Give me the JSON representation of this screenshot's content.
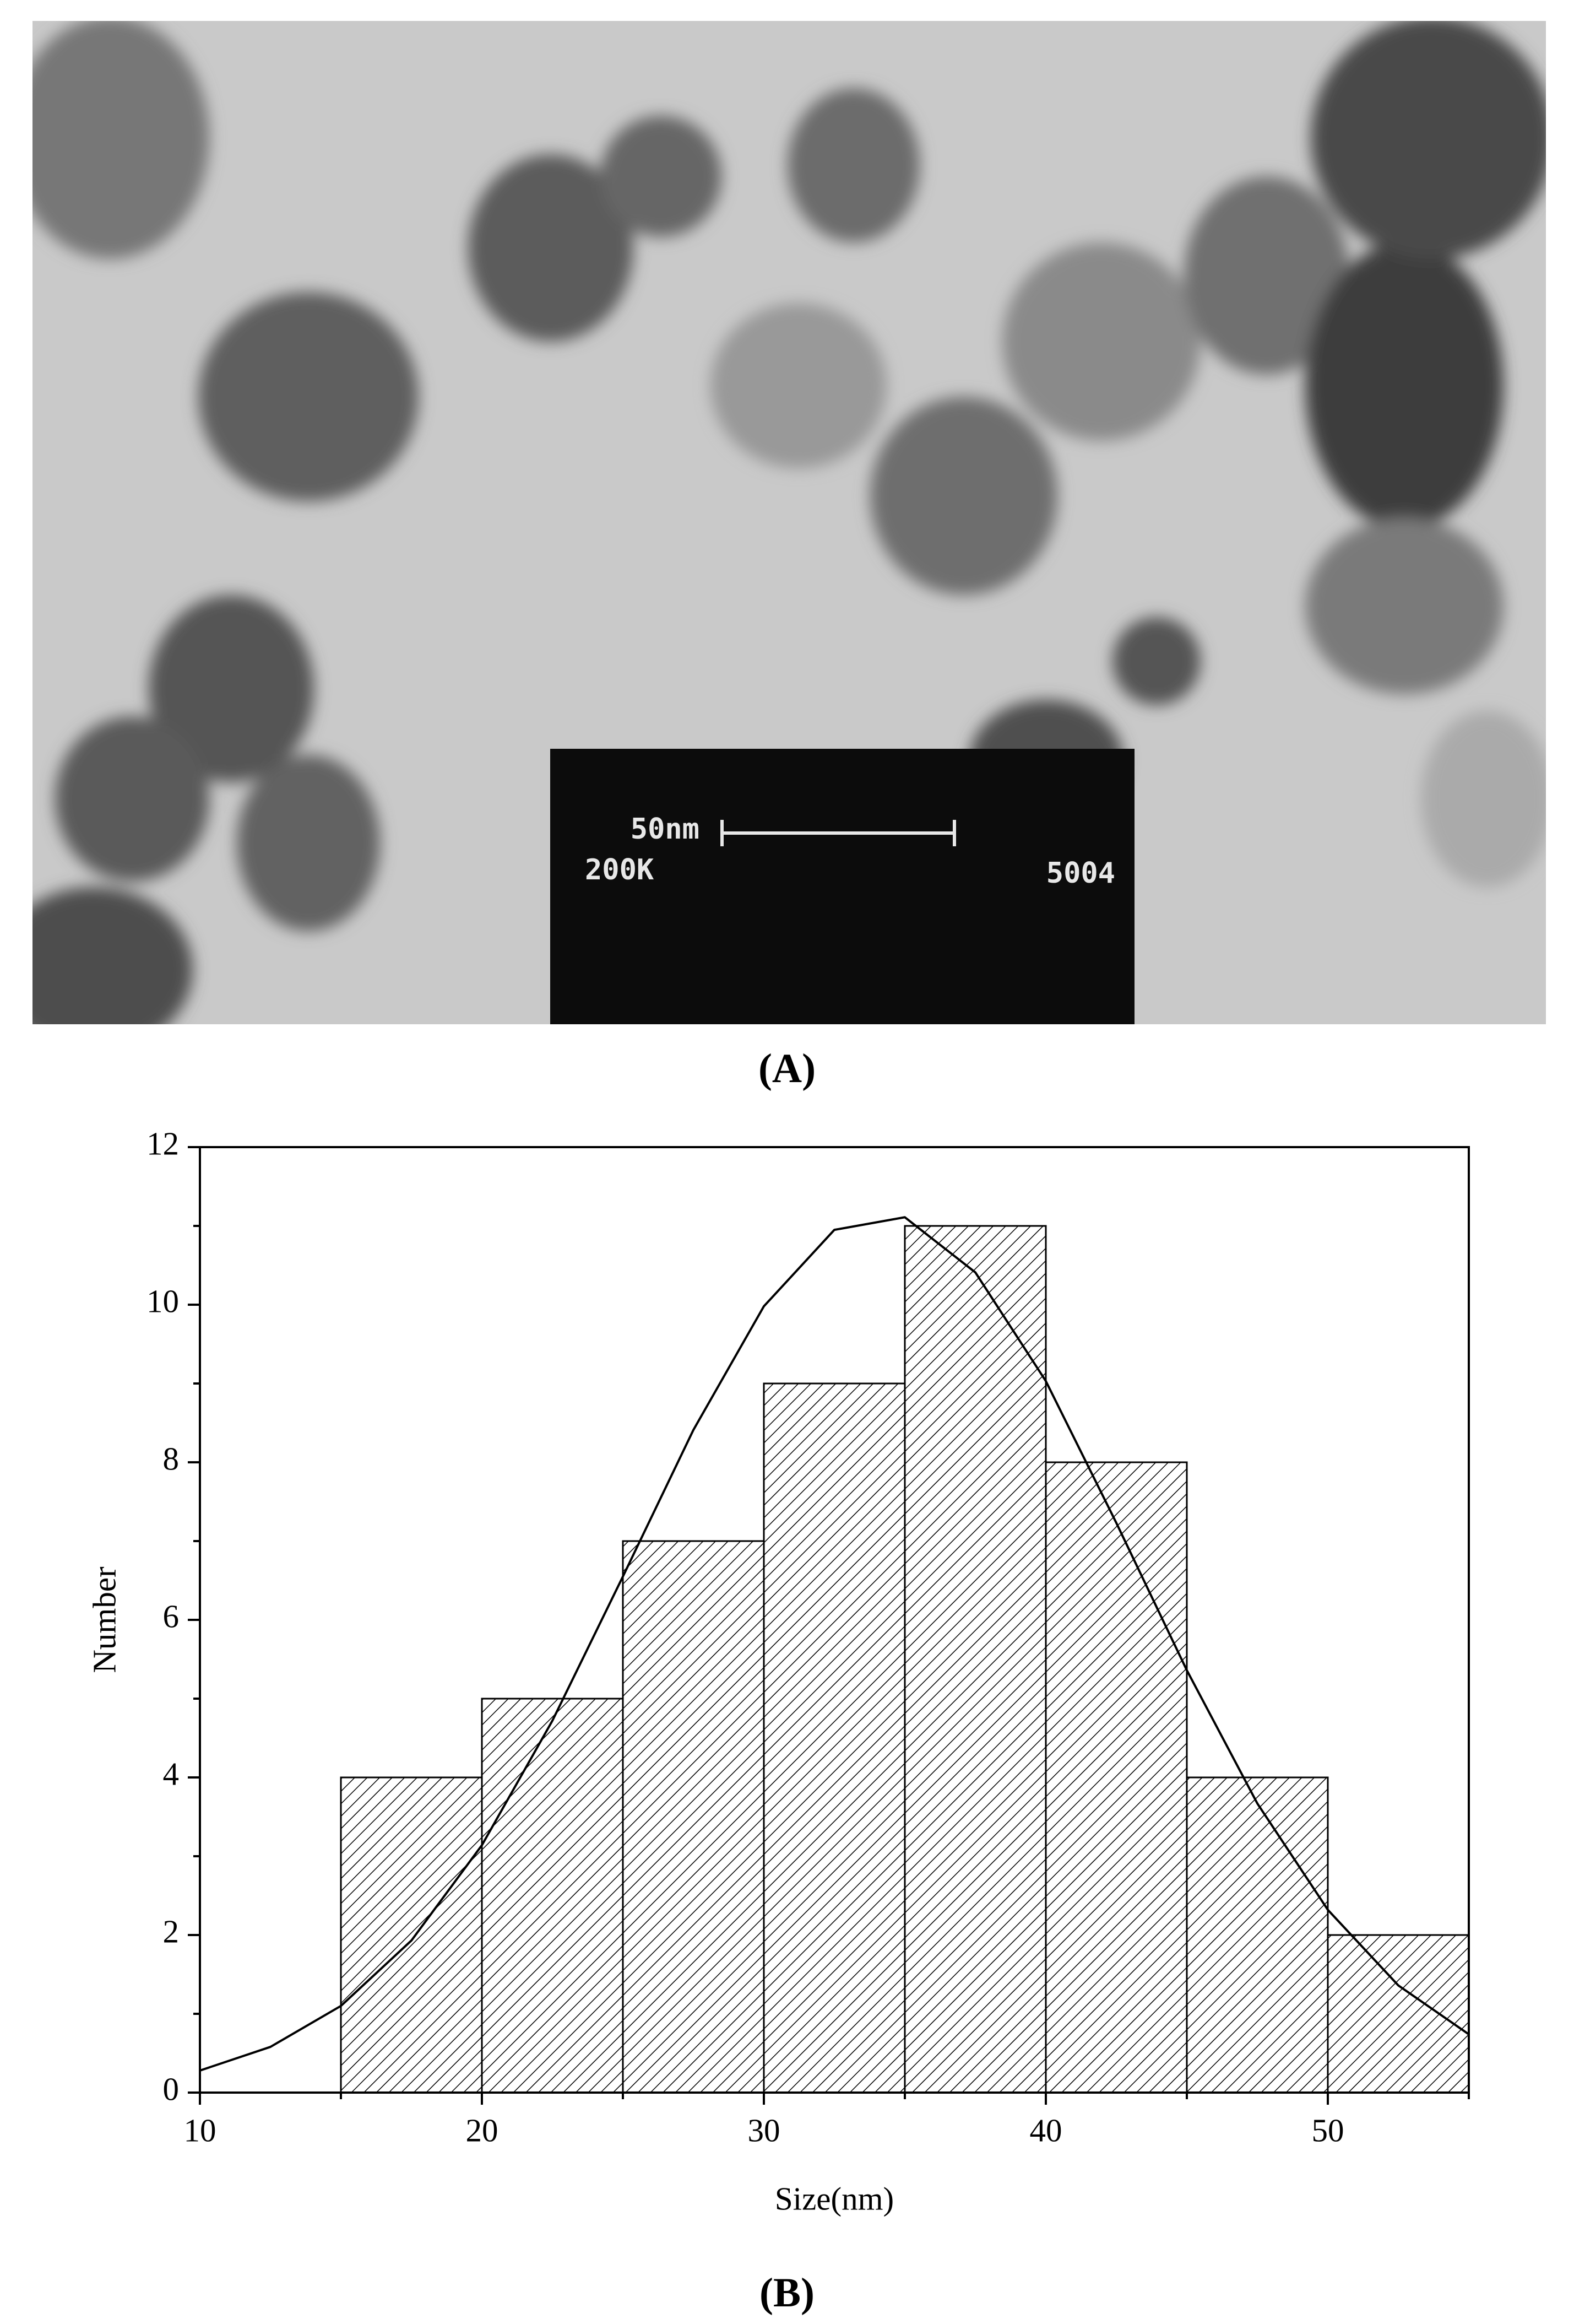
{
  "panel_a": {
    "label": "(A)",
    "scale_bar": "50nm",
    "magnification": "200K",
    "image_number": "5004"
  },
  "chart_data": {
    "type": "histogram",
    "bins": [
      15,
      20,
      25,
      30,
      35,
      40,
      45,
      50,
      55
    ],
    "values": [
      4,
      5,
      7,
      9,
      11,
      8,
      4,
      2
    ],
    "fit": {
      "x": [
        10,
        12.5,
        15,
        17.5,
        20,
        22.5,
        25,
        27.5,
        30,
        32.5,
        35,
        37.5,
        40,
        42.5,
        45,
        47.5,
        50,
        52.5,
        55
      ],
      "values": [
        0.28,
        0.58,
        1.1,
        1.93,
        3.14,
        4.72,
        6.55,
        8.41,
        9.98,
        10.95,
        11.11,
        10.41,
        9.03,
        7.23,
        5.36,
        3.67,
        2.32,
        1.36,
        0.74
      ]
    },
    "xlabel": "Size(nm)",
    "ylabel": "Number",
    "label": "(B)",
    "xlim": [
      10,
      55
    ],
    "ylim": [
      0,
      12
    ],
    "xticks": [
      10,
      20,
      30,
      40,
      50
    ],
    "yticks": [
      0,
      2,
      4,
      6,
      8,
      10,
      12
    ],
    "color": "#000000"
  }
}
